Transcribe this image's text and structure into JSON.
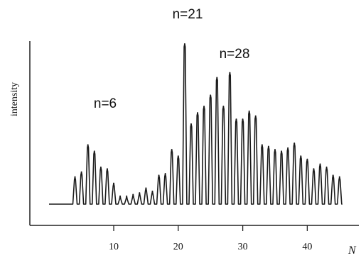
{
  "chart_data": {
    "type": "line",
    "title": "",
    "xlabel": "N",
    "ylabel": "intensity",
    "xlim": [
      -3,
      48
    ],
    "ylim": [
      0,
      100
    ],
    "x_ticks": [
      10,
      20,
      30,
      40
    ],
    "y_ticks": [],
    "grid": false,
    "legend": "none",
    "series": [
      {
        "x": [
          4,
          5,
          6,
          7,
          8,
          9,
          10,
          11,
          12,
          13,
          14,
          15,
          16,
          17,
          18,
          19,
          20,
          21,
          22,
          23,
          24,
          25,
          26,
          27,
          28,
          29,
          30,
          31,
          32,
          33,
          34,
          35,
          36,
          37,
          38,
          39,
          40,
          41,
          42,
          43,
          44,
          45
        ],
        "y": [
          17,
          20,
          37,
          33,
          23,
          22,
          13,
          5,
          5,
          6,
          7,
          10,
          8,
          18,
          19,
          34,
          30,
          100,
          50,
          57,
          61,
          68,
          79,
          61,
          82,
          53,
          53,
          58,
          55,
          37,
          36,
          34,
          33,
          35,
          38,
          30,
          28,
          22,
          25,
          23,
          18,
          17
        ]
      }
    ],
    "annotations": [
      "n=21",
      "n=28",
      "n=6"
    ]
  },
  "colors": {
    "line": "#1a1a1a",
    "axis": "#222222"
  }
}
